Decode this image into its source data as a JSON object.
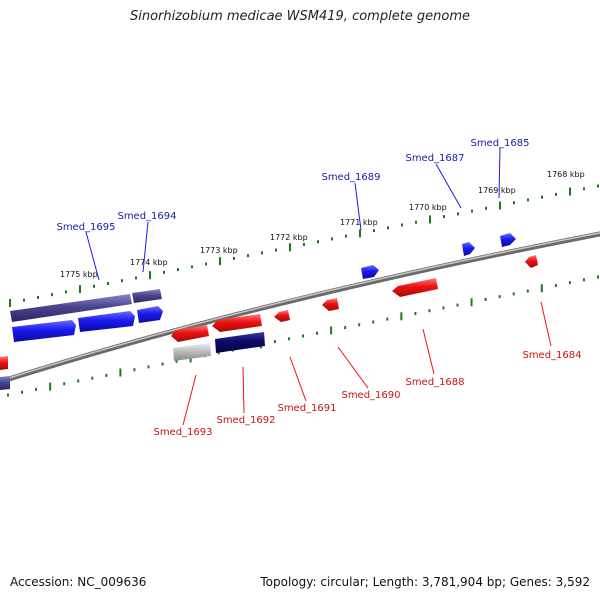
{
  "title": "Sinorhizobium medicae WSM419, complete genome",
  "footer": {
    "accession": "Accession: NC_009636",
    "summary": "Topology: circular; Length: 3,781,904 bp; Genes: 3,592"
  },
  "colors": {
    "forward": "#1a1aee",
    "reverse": "#ee1111",
    "forward_label": "#1a1aaa",
    "reverse_label": "#cc1111",
    "backbone": "#8a8a8a",
    "tick": "#1c7a1c",
    "purple": "#4a4590",
    "navy": "#0a0a6a",
    "gray": "#bdbdbd"
  },
  "kbp_labels": [
    "1775 kbp",
    "1774 kbp",
    "1773 kbp",
    "1772 kbp",
    "1771 kbp",
    "1770 kbp",
    "1769 kbp",
    "1768 kbp"
  ],
  "genes_forward": [
    "Smed_1695",
    "Smed_1694",
    "Smed_1689",
    "Smed_1687",
    "Smed_1685"
  ],
  "genes_reverse": [
    "Smed_1693",
    "Smed_1692",
    "Smed_1691",
    "Smed_1690",
    "Smed_1688",
    "Smed_1684"
  ]
}
